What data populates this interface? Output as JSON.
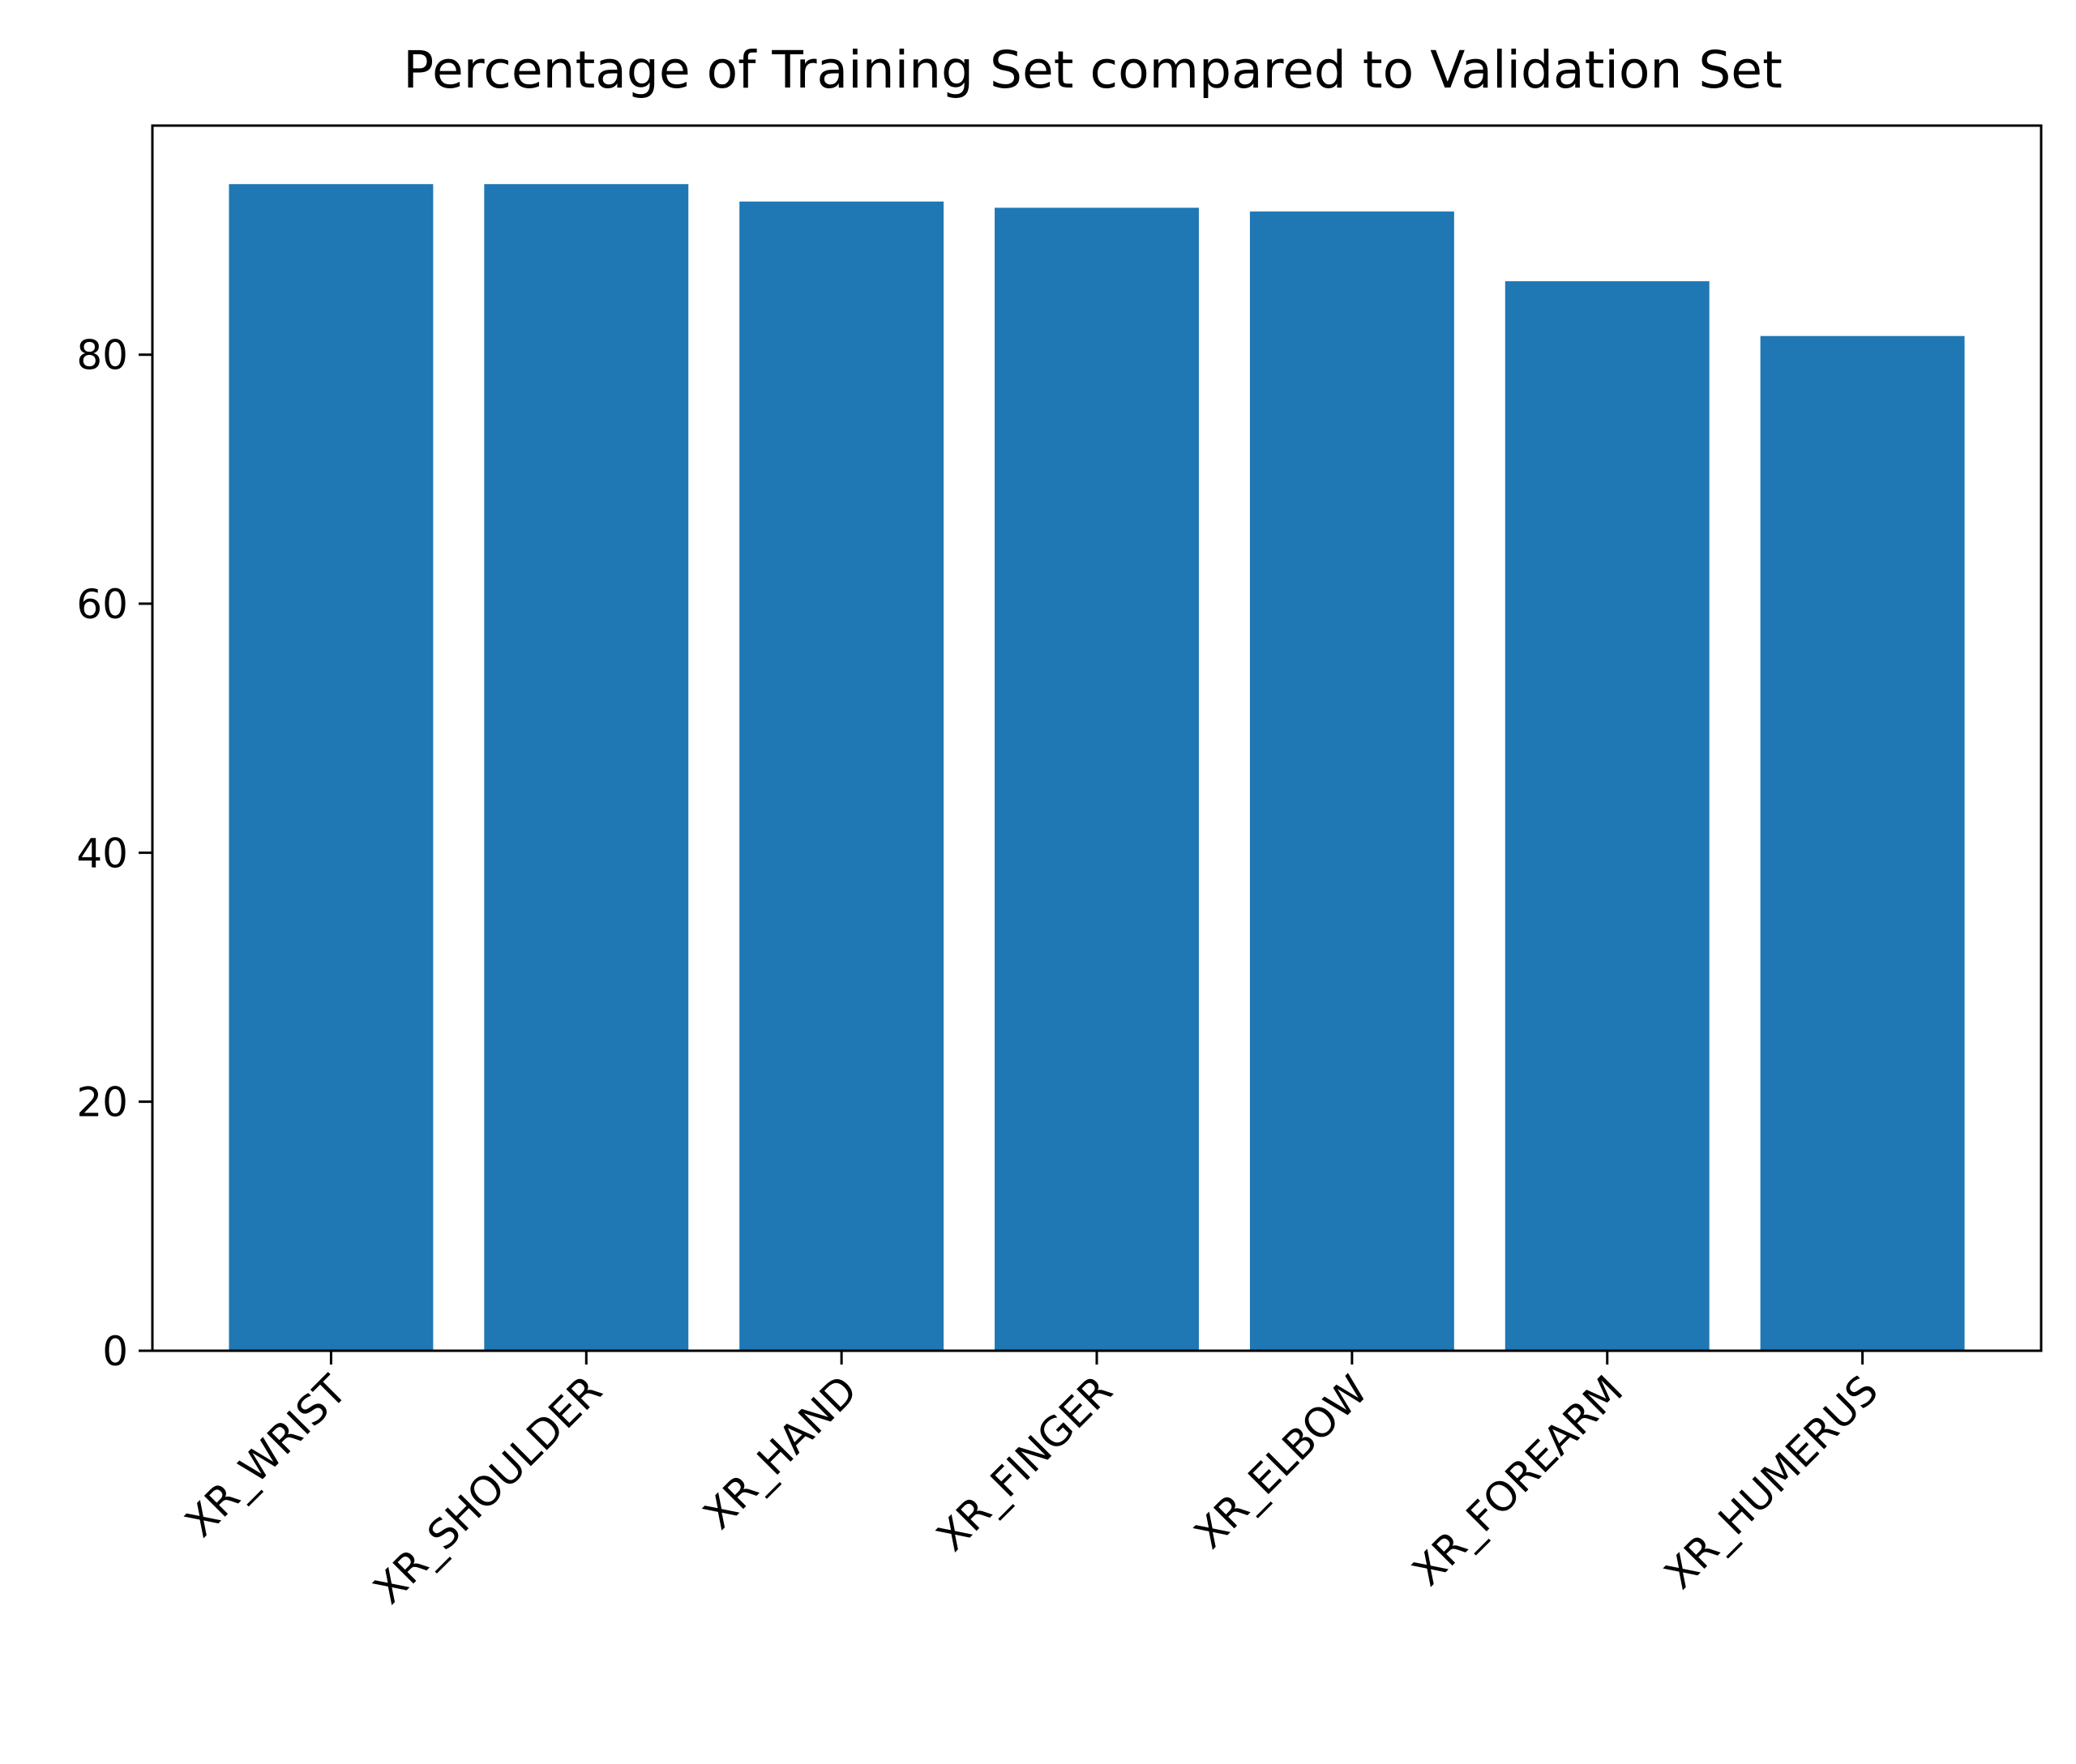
{
  "chart_data": {
    "type": "bar",
    "title": "Percentage of Training Set compared to Validation Set",
    "xlabel": "",
    "ylabel": "",
    "categories": [
      "XR_WRIST",
      "XR_SHOULDER",
      "XR_HAND",
      "XR_FINGER",
      "XR_ELBOW",
      "XR_FOREARM",
      "XR_HUMERUS"
    ],
    "values": [
      93.7,
      93.7,
      92.3,
      91.8,
      91.5,
      85.9,
      81.5
    ],
    "ylim": [
      0,
      98.4
    ],
    "yticks": [
      0,
      20,
      40,
      60,
      80
    ],
    "grid": false,
    "bar_color": "#1f77b4",
    "xtick_rotation": -45
  }
}
